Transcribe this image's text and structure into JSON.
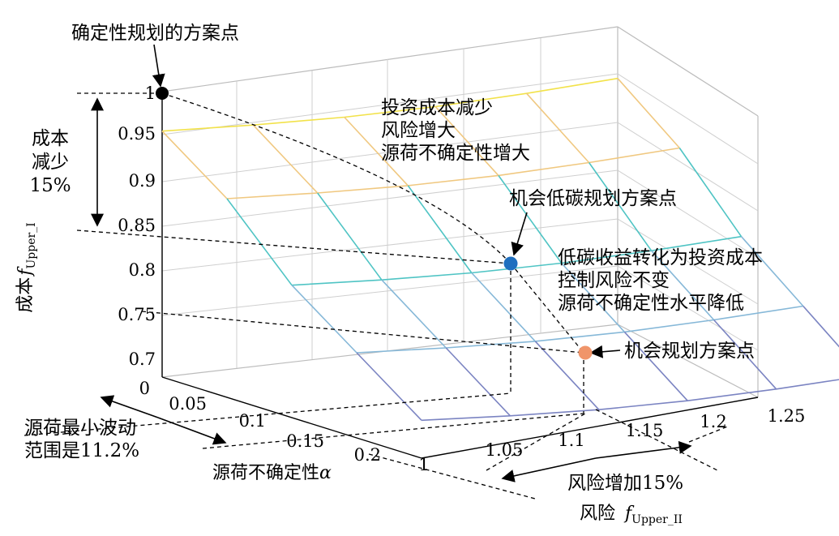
{
  "chart_data": {
    "type": "surface3d",
    "title": "",
    "axes": {
      "z": {
        "label_main": "成本",
        "label_f": "f",
        "label_sub": "Upper_I",
        "ticks": [
          "0.7",
          "0.75",
          "0.8",
          "0.85",
          "0.9",
          "0.95",
          "1"
        ],
        "range": [
          0.7,
          1.0
        ]
      },
      "x": {
        "label": "风险",
        "label_f": "f",
        "label_sub": "Upper_II",
        "ticks": [
          "1",
          "1.05",
          "1.1",
          "1.15",
          "1.2",
          "1.25"
        ],
        "range": [
          1.0,
          1.25
        ]
      },
      "y": {
        "label_text": "源荷不确定性",
        "label_symbol": "α",
        "ticks": [
          "0",
          "0.05",
          "0.1",
          "0.15",
          "0.2"
        ],
        "range": [
          0,
          0.2
        ]
      }
    },
    "surface": {
      "x_grid": [
        1.0,
        1.05,
        1.1,
        1.15,
        1.2,
        1.25
      ],
      "alpha_grid": [
        0,
        0.05,
        0.1,
        0.15,
        0.2
      ],
      "cost_rows": [
        0.96,
        0.91,
        0.84,
        0.79,
        0.74
      ]
    },
    "points": [
      {
        "name": "确定性规划的方案点",
        "risk": 1.0,
        "alpha": 0,
        "cost": 1.0,
        "color": "#000000"
      },
      {
        "name": "机会低碳规划方案点",
        "risk": 1.15,
        "alpha": 0.05,
        "cost": 0.85,
        "color": "#1f6fbf"
      },
      {
        "name": "机会规划方案点",
        "risk": 1.25,
        "alpha": 0.05,
        "cost": 0.75,
        "color": "#f0956a"
      }
    ],
    "annotations": {
      "cost_reduction": [
        "成本",
        "减少",
        "15%"
      ],
      "top_note": [
        "投资成本减少",
        "风险增大",
        "源荷不确定性增大"
      ],
      "mid_note": [
        "低碳收益转化为投资成本",
        "控制风险不变",
        "源荷不确定性水平降低"
      ],
      "min_fluct": [
        "源荷最小波动",
        "范围是11.2%"
      ],
      "risk_increase": "风险增加15%"
    },
    "colors": {
      "rows": [
        "#f2e24a",
        "#f0c880",
        "#4fc4c4",
        "#86b8d8",
        "#7b84c2"
      ],
      "box": "#c0c0c0"
    }
  }
}
